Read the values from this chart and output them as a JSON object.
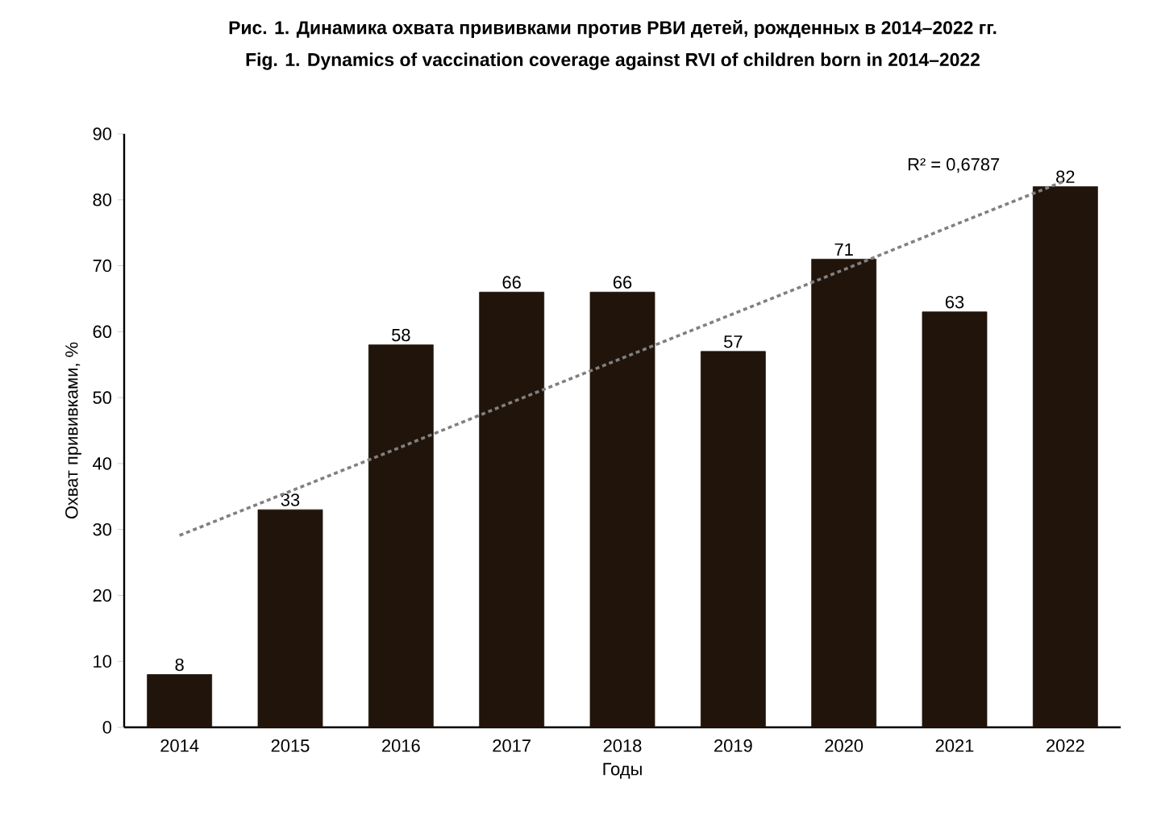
{
  "chart_data": {
    "type": "bar",
    "title": "Рис. 1. Динамика охвата прививками против РВИ детей, рожденных в 2014–2022 гг.",
    "subtitle": "Fig. 1. Dynamics of vaccination coverage against RVI of children born in 2014–2022",
    "xlabel": "Годы",
    "ylabel": "Охват прививками, %",
    "categories": [
      "2014",
      "2015",
      "2016",
      "2017",
      "2018",
      "2019",
      "2020",
      "2021",
      "2022"
    ],
    "series": [
      {
        "color": "#21140a",
        "values": [
          8,
          33,
          58,
          66,
          66,
          57,
          71,
          63,
          82
        ],
        "value_labels": [
          "8",
          "33",
          "58",
          "66",
          "66",
          "57",
          "71",
          "63",
          "82"
        ]
      },
      {
        "type": "line",
        "color": "#808080",
        "line_style": "dotted",
        "marker": "none",
        "values": [
          29.1,
          35.8,
          42.5,
          49.3,
          56.0,
          62.7,
          69.4,
          76.2,
          82.9
        ]
      }
    ],
    "annotations": [
      "R² = 0,6787"
    ],
    "ylim": [
      0,
      90
    ],
    "yticks": [
      0,
      10,
      20,
      30,
      40,
      50,
      60,
      70,
      80,
      90
    ],
    "grid": false
  }
}
